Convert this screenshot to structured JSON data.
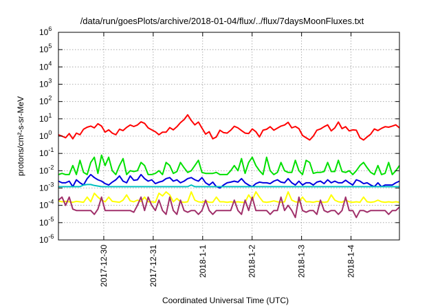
{
  "chart_data": {
    "type": "line",
    "title": "/data/run/goesPlots/archive/2018-01-04/flux/../flux/7daysMoonFluxes.txt",
    "xlabel": "Coordinated Universal Time (UTC)",
    "ylabel": "protons/cm²-s-sr-MeV",
    "x_range": [
      "2017-12-29T02:00",
      "2018-01-04T23:30"
    ],
    "ylim": [
      1e-06,
      1000000.0
    ],
    "y_scale": "log",
    "grid": true,
    "x_ticks": [
      {
        "label": "2017-12-30",
        "value": "2017-12-30T00:00"
      },
      {
        "label": "2017-12-31",
        "value": "2017-12-31T00:00"
      },
      {
        "label": "2018-1-1",
        "value": "2018-01-01T00:00"
      },
      {
        "label": "2018-1-2",
        "value": "2018-01-02T00:00"
      },
      {
        "label": "2018-1-3",
        "value": "2018-01-03T00:00"
      },
      {
        "label": "2018-1-4",
        "value": "2018-01-04T00:00"
      }
    ],
    "y_ticks": [
      {
        "base": "10",
        "exp": "-6",
        "value": -6
      },
      {
        "base": "10",
        "exp": "-5",
        "value": -5
      },
      {
        "base": "10",
        "exp": "-4",
        "value": -4
      },
      {
        "base": "10",
        "exp": "-3",
        "value": -3
      },
      {
        "base": "10",
        "exp": "-2",
        "value": -2
      },
      {
        "base": "10",
        "exp": "-1",
        "value": -1
      },
      {
        "base": "10",
        "exp": "0",
        "value": 0
      },
      {
        "base": "10",
        "exp": "1",
        "value": 1
      },
      {
        "base": "10",
        "exp": "2",
        "value": 2
      },
      {
        "base": "10",
        "exp": "3",
        "value": 3
      },
      {
        "base": "10",
        "exp": "4",
        "value": 4
      },
      {
        "base": "10",
        "exp": "5",
        "value": 5
      },
      {
        "base": "10",
        "exp": "6",
        "value": 6
      }
    ],
    "series": [
      {
        "color": "#ff0000",
        "values": [
          1.2,
          1,
          0.8,
          1.4,
          0.7,
          1.5,
          1.2,
          2.5,
          3.3,
          3.8,
          3,
          5.2,
          3.8,
          1.7,
          2.3,
          1.5,
          1.2,
          2.5,
          2.1,
          3.2,
          4.4,
          3.6,
          4.4,
          6.7,
          5.5,
          3,
          2.3,
          1.8,
          1.2,
          1.7,
          1.7,
          3.1,
          2.3,
          3.5,
          6,
          9,
          17,
          8,
          4.5,
          6.5,
          2.9,
          1.3,
          1.8,
          0.7,
          0.9,
          2.2,
          1.6,
          1.5,
          2.2,
          3.7,
          3,
          2.1,
          1.5,
          1.4,
          2.6,
          1.8,
          0.9,
          2.2,
          2.5,
          3.5,
          2.2,
          2.9,
          3.8,
          4.4,
          6.3,
          3,
          3.6,
          2.7,
          1.1,
          0.8,
          0.6,
          1,
          2.2,
          2.6,
          3.5,
          4.5,
          2,
          3,
          6.5,
          2.7,
          3.5,
          2,
          2.3,
          2.2,
          0.8,
          0.6,
          0.9,
          1.3,
          2.6,
          2.1,
          2.8,
          3.5,
          3.3,
          3.8,
          4.5,
          3
        ]
      },
      {
        "color": "#00e000",
        "values": [
          0.006,
          0.007,
          0.006,
          0.006,
          0.02,
          0.006,
          0.04,
          0.008,
          0.006,
          0.03,
          0.06,
          0.007,
          0.08,
          0.02,
          0.06,
          0.01,
          0.006,
          0.02,
          0.05,
          0.006,
          0.01,
          0.009,
          0.01,
          0.03,
          0.02,
          0.006,
          0.006,
          0.007,
          0.01,
          0.006,
          0.03,
          0.02,
          0.007,
          0.009,
          0.03,
          0.015,
          0.008,
          0.01,
          0.02,
          0.04,
          0.008,
          0.007,
          0.007,
          0.007,
          0.008,
          0.006,
          0.006,
          0.006,
          0.01,
          0.02,
          0.01,
          0.05,
          0.007,
          0.03,
          0.06,
          0.02,
          0.01,
          0.006,
          0.06,
          0.01,
          0.006,
          0.008,
          0.03,
          0.01,
          0.008,
          0.008,
          0.04,
          0.01,
          0.006,
          0.04,
          0.03,
          0.007,
          0.008,
          0.008,
          0.009,
          0.03,
          0.009,
          0.009,
          0.04,
          0.009,
          0.008,
          0.01,
          0.006,
          0.01,
          0.02,
          0.03,
          0.015,
          0.008,
          0.006,
          0.02,
          0.006,
          0.007,
          0.03,
          0.006,
          0.01,
          0.02
        ]
      },
      {
        "color": "#0000e0",
        "values": [
          0.0025,
          0.002,
          0.002,
          0.0025,
          0.0012,
          0.003,
          0.002,
          0.0015,
          0.0035,
          0.006,
          0.004,
          0.003,
          0.0025,
          0.0018,
          0.0015,
          0.0022,
          0.003,
          0.005,
          0.0025,
          0.002,
          0.005,
          0.0028,
          0.003,
          0.006,
          0.0035,
          0.0025,
          0.003,
          0.0018,
          0.0022,
          0.0025,
          0.0035,
          0.004,
          0.0025,
          0.003,
          0.002,
          0.0025,
          0.0035,
          0.004,
          0.003,
          0.0025,
          0.004,
          0.002,
          0.0015,
          0.0022,
          0.0012,
          0.001,
          0.0015,
          0.002,
          0.0022,
          0.0025,
          0.0022,
          0.0035,
          0.002,
          0.0015,
          0.0012,
          0.0018,
          0.0022,
          0.002,
          0.002,
          0.0018,
          0.0025,
          0.003,
          0.0022,
          0.002,
          0.0035,
          0.002,
          0.0015,
          0.0025,
          0.0015,
          0.002,
          0.002,
          0.0015,
          0.0022,
          0.0025,
          0.0018,
          0.003,
          0.002,
          0.0025,
          0.002,
          0.002,
          0.0028,
          0.002,
          0.0015,
          0.003,
          0.0025,
          0.0018,
          0.002,
          0.0015,
          0.0012,
          0.002,
          0.0012,
          0.0015,
          0.0015,
          0.0015,
          0.002,
          0.0025
        ]
      },
      {
        "color": "#00c0c0",
        "values": [
          0.0012,
          0.0012,
          0.0012,
          0.0012,
          0.0012,
          0.0012,
          0.0012,
          0.0015,
          0.0016,
          0.0016,
          0.0014,
          0.0013,
          0.0012,
          0.0012,
          0.0012,
          0.0012,
          0.0012,
          0.0012,
          0.0012,
          0.0012,
          0.0012,
          0.0012,
          0.0012,
          0.0012,
          0.0012,
          0.0012,
          0.0012,
          0.0012,
          0.0012,
          0.0012,
          0.0012,
          0.0012,
          0.0012,
          0.0012,
          0.0012,
          0.0012,
          0.0012,
          0.0015,
          0.0012,
          0.0012,
          0.0012,
          0.0012,
          0.0012,
          0.0012,
          0.0012,
          0.0012,
          0.0012,
          0.0012,
          0.0012,
          0.0012,
          0.0012,
          0.0012,
          0.0012,
          0.0012,
          0.0012,
          0.0012,
          0.0012,
          0.0012,
          0.0012,
          0.0012,
          0.0012,
          0.0012,
          0.0012,
          0.0012,
          0.0012,
          0.0012,
          0.0012,
          0.0012,
          0.0012,
          0.0012,
          0.0012,
          0.0012,
          0.0012,
          0.0012,
          0.0012,
          0.0012,
          0.0012,
          0.0012,
          0.0012,
          0.0012,
          0.0012,
          0.0012,
          0.0012,
          0.0012,
          0.0012,
          0.0012,
          0.0012,
          0.0012,
          0.0012,
          0.0012,
          0.0012,
          0.0012,
          0.0012,
          0.0012,
          0.0012,
          0.0012
        ]
      },
      {
        "color": "#ffff00",
        "values": [
          0.00018,
          0.00016,
          0.00017,
          0.00016,
          0.00015,
          0.00017,
          0.00016,
          0.00015,
          0.0003,
          0.00016,
          0.0005,
          0.0003,
          0.0002,
          0.00016,
          0.0003,
          0.00017,
          0.00016,
          0.00015,
          0.0002,
          0.0004,
          0.00018,
          0.00016,
          0.0002,
          0.00017,
          0.0003,
          0.00016,
          0.00016,
          0.00015,
          0.0005,
          0.00035,
          0.0006,
          0.0004,
          0.00016,
          0.00025,
          0.00016,
          0.00015,
          0.00016,
          0.0006,
          0.0002,
          0.00016,
          0.00015,
          0.00018,
          0.00015,
          0.00015,
          0.0003,
          0.00016,
          0.00016,
          0.00015,
          0.00016,
          0.00015,
          0.00016,
          0.00015,
          0.00015,
          0.0004,
          0.0002,
          0.0006,
          0.0003,
          0.00016,
          0.00015,
          0.00016,
          0.00018,
          0.00016,
          0.00015,
          0.00016,
          0.0006,
          0.0002,
          0.00016,
          0.00015,
          0.0003,
          0.00016,
          0.00016,
          0.00015,
          0.00017,
          0.00016,
          0.00015,
          0.00016,
          0.0004,
          0.0002,
          0.00016,
          0.00015,
          0.0002,
          0.00016,
          0.00015,
          0.00016,
          0.00015,
          0.0003,
          0.00016,
          0.00015,
          0.00016,
          0.0002,
          0.00016,
          0.00015,
          0.00016,
          0.00015,
          0.00016,
          0.00015
        ]
      },
      {
        "color": "#a0306a",
        "values": [
          0.0002,
          0.0003,
          0.0001,
          0.0003,
          6e-05,
          5e-05,
          5e-05,
          5e-05,
          5e-05,
          5e-05,
          3e-05,
          6e-05,
          0.0003,
          5e-05,
          5e-05,
          5e-05,
          5e-05,
          5e-05,
          5e-05,
          5e-05,
          5e-05,
          4e-05,
          0.0001,
          0.0003,
          5e-05,
          0.0003,
          0.0001,
          5e-05,
          0.0002,
          5e-05,
          3e-05,
          0.0003,
          5e-05,
          3e-05,
          0.0002,
          5e-05,
          4e-05,
          5e-05,
          5e-05,
          3e-05,
          5e-05,
          0.0002,
          5e-05,
          3e-05,
          5e-05,
          5e-05,
          5e-05,
          5e-05,
          5e-05,
          0.0002,
          5e-05,
          3e-05,
          0.0002,
          5e-05,
          0.0003,
          5e-05,
          5e-05,
          5e-05,
          5e-05,
          3e-05,
          5e-05,
          5e-05,
          0.0003,
          5e-05,
          0.0001,
          5e-05,
          2e-05,
          0.0003,
          5e-05,
          4e-05,
          5e-05,
          5e-05,
          3e-05,
          0.0002,
          5e-05,
          4e-05,
          5e-05,
          5e-05,
          3e-05,
          5e-05,
          0.0003,
          5e-05,
          5e-05,
          2e-05,
          5e-05,
          5e-05,
          4e-05,
          5e-05,
          5e-05,
          5e-05,
          5e-05,
          5e-05,
          3e-05,
          5e-05,
          5e-05,
          8e-05
        ]
      }
    ]
  }
}
